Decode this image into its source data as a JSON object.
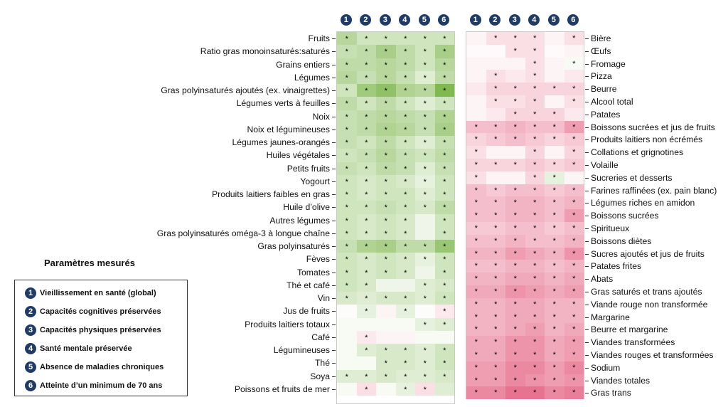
{
  "chart_data": [
    {
      "type": "heatmap",
      "columns": [
        "1",
        "2",
        "3",
        "4",
        "5",
        "6"
      ],
      "rows": [
        {
          "label": "Fruits",
          "values": [
            0.45,
            0.3,
            0.3,
            0.3,
            0.3,
            0.3
          ],
          "stars": [
            1,
            1,
            1,
            1,
            1,
            1
          ]
        },
        {
          "label": "Ratio gras monoinsaturés:saturés",
          "values": [
            0.35,
            0.4,
            0.55,
            0.4,
            0.3,
            0.55
          ],
          "stars": [
            1,
            1,
            1,
            1,
            1,
            1
          ]
        },
        {
          "label": "Grains entiers",
          "values": [
            0.4,
            0.4,
            0.45,
            0.4,
            0.3,
            0.45
          ],
          "stars": [
            1,
            1,
            1,
            1,
            1,
            1
          ]
        },
        {
          "label": "Légumes",
          "values": [
            0.45,
            0.35,
            0.45,
            0.35,
            0.2,
            0.4
          ],
          "stars": [
            1,
            1,
            1,
            1,
            1,
            1
          ]
        },
        {
          "label": "Gras polyinsaturés ajoutés (ex. vinaigrettes)",
          "values": [
            0.3,
            0.6,
            0.7,
            0.5,
            0.45,
            0.8
          ],
          "stars": [
            1,
            1,
            1,
            1,
            1,
            1
          ]
        },
        {
          "label": "Légumes verts à feuilles",
          "values": [
            0.4,
            0.3,
            0.4,
            0.3,
            0.2,
            0.3
          ],
          "stars": [
            1,
            1,
            1,
            1,
            1,
            1
          ]
        },
        {
          "label": "Noix",
          "values": [
            0.35,
            0.4,
            0.45,
            0.4,
            0.35,
            0.5
          ],
          "stars": [
            1,
            1,
            1,
            1,
            1,
            1
          ]
        },
        {
          "label": "Noix et légumineuses",
          "values": [
            0.35,
            0.4,
            0.5,
            0.45,
            0.35,
            0.55
          ],
          "stars": [
            1,
            1,
            1,
            1,
            1,
            1
          ]
        },
        {
          "label": "Légumes jaunes-orangés",
          "values": [
            0.35,
            0.3,
            0.4,
            0.3,
            0.2,
            0.35
          ],
          "stars": [
            1,
            1,
            1,
            1,
            1,
            1
          ]
        },
        {
          "label": "Huiles végétales",
          "values": [
            0.3,
            0.35,
            0.45,
            0.35,
            0.3,
            0.4
          ],
          "stars": [
            1,
            1,
            1,
            1,
            1,
            1
          ]
        },
        {
          "label": "Petits fruits",
          "values": [
            0.35,
            0.3,
            0.4,
            0.35,
            0.2,
            0.35
          ],
          "stars": [
            1,
            1,
            1,
            1,
            1,
            1
          ]
        },
        {
          "label": "Yogourt",
          "values": [
            0.3,
            0.25,
            0.3,
            0.25,
            0.15,
            0.3
          ],
          "stars": [
            1,
            1,
            1,
            1,
            1,
            1
          ]
        },
        {
          "label": "Produits laitiers faibles en gras",
          "values": [
            0.3,
            0.25,
            0.3,
            0.3,
            0.2,
            0.3
          ],
          "stars": [
            1,
            1,
            1,
            1,
            1,
            1
          ]
        },
        {
          "label": "Huile d’olive",
          "values": [
            0.3,
            0.3,
            0.35,
            0.3,
            0.25,
            0.4
          ],
          "stars": [
            1,
            1,
            1,
            1,
            1,
            1
          ]
        },
        {
          "label": "Autres légumes",
          "values": [
            0.3,
            0.25,
            0.3,
            0.25,
            0.1,
            0.3
          ],
          "stars": [
            1,
            1,
            1,
            1,
            0,
            1
          ]
        },
        {
          "label": "Gras polyinsaturés oméga-3 à longue chaîne",
          "values": [
            0.3,
            0.25,
            0.3,
            0.25,
            0.1,
            0.3
          ],
          "stars": [
            1,
            1,
            1,
            1,
            0,
            1
          ]
        },
        {
          "label": "Gras polyinsaturés",
          "values": [
            0.35,
            0.5,
            0.55,
            0.4,
            0.4,
            0.65
          ],
          "stars": [
            1,
            1,
            1,
            1,
            1,
            1
          ]
        },
        {
          "label": "Fèves",
          "values": [
            0.3,
            0.25,
            0.3,
            0.25,
            0.15,
            0.3
          ],
          "stars": [
            1,
            1,
            1,
            1,
            1,
            1
          ]
        },
        {
          "label": "Tomates",
          "values": [
            0.3,
            0.25,
            0.3,
            0.25,
            0.1,
            0.3
          ],
          "stars": [
            1,
            1,
            1,
            1,
            0,
            1
          ]
        },
        {
          "label": "Thé et café",
          "values": [
            0.3,
            0.25,
            0.1,
            0.1,
            0.2,
            0.25
          ],
          "stars": [
            1,
            1,
            0,
            0,
            1,
            1
          ]
        },
        {
          "label": "Vin",
          "values": [
            0.25,
            0.2,
            0.25,
            0.25,
            0.2,
            0.3
          ],
          "stars": [
            1,
            1,
            1,
            1,
            1,
            1
          ]
        },
        {
          "label": "Jus de fruits",
          "values": [
            0.02,
            0.15,
            -0.05,
            0.15,
            0.02,
            -0.1
          ],
          "stars": [
            0,
            1,
            0,
            1,
            0,
            1
          ]
        },
        {
          "label": "Produits laitiers totaux",
          "values": [
            0.05,
            0.05,
            0.05,
            0.05,
            0.15,
            0.2
          ],
          "stars": [
            0,
            0,
            0,
            0,
            1,
            1
          ]
        },
        {
          "label": "Café",
          "values": [
            0.05,
            -0.1,
            -0.05,
            -0.05,
            0.05,
            0.05
          ],
          "stars": [
            0,
            1,
            0,
            0,
            0,
            0
          ]
        },
        {
          "label": "Légumineuses",
          "values": [
            0.05,
            0.2,
            0.25,
            0.25,
            0.2,
            0.3
          ],
          "stars": [
            0,
            1,
            1,
            1,
            1,
            1
          ]
        },
        {
          "label": "Thé",
          "values": [
            0.05,
            0.05,
            0.25,
            0.25,
            0.2,
            0.3
          ],
          "stars": [
            0,
            0,
            1,
            1,
            1,
            1
          ]
        },
        {
          "label": "Soya",
          "values": [
            0.2,
            0.2,
            0.25,
            0.2,
            0.2,
            0.25
          ],
          "stars": [
            1,
            1,
            1,
            1,
            1,
            1
          ]
        },
        {
          "label": "Poissons et fruits de mer",
          "values": [
            0.05,
            -0.15,
            0.05,
            0.15,
            -0.15,
            0.2
          ],
          "stars": [
            0,
            1,
            0,
            1,
            1,
            0
          ]
        }
      ]
    },
    {
      "type": "heatmap",
      "columns": [
        "1",
        "2",
        "3",
        "4",
        "5",
        "6"
      ],
      "rows": [
        {
          "label": "Bière",
          "values": [
            -0.05,
            -0.15,
            -0.15,
            -0.15,
            -0.05,
            -0.15
          ],
          "stars": [
            0,
            1,
            1,
            1,
            0,
            1
          ]
        },
        {
          "label": "Œufs",
          "values": [
            -0.03,
            -0.03,
            -0.15,
            -0.15,
            -0.03,
            -0.05
          ],
          "stars": [
            0,
            0,
            1,
            1,
            0,
            0
          ]
        },
        {
          "label": "Fromage",
          "values": [
            -0.05,
            -0.05,
            -0.05,
            -0.15,
            -0.05,
            0.05
          ],
          "stars": [
            0,
            0,
            0,
            1,
            0,
            1
          ]
        },
        {
          "label": "Pizza",
          "values": [
            -0.05,
            -0.15,
            -0.1,
            -0.15,
            -0.05,
            -0.1
          ],
          "stars": [
            0,
            1,
            0,
            1,
            0,
            0
          ]
        },
        {
          "label": "Beurre",
          "values": [
            -0.1,
            -0.2,
            -0.2,
            -0.2,
            -0.2,
            -0.2
          ],
          "stars": [
            0,
            1,
            1,
            1,
            1,
            1
          ]
        },
        {
          "label": "Alcool total",
          "values": [
            -0.05,
            -0.15,
            -0.15,
            -0.2,
            -0.05,
            -0.15
          ],
          "stars": [
            0,
            1,
            1,
            1,
            0,
            1
          ]
        },
        {
          "label": "Patates",
          "values": [
            -0.05,
            -0.1,
            -0.2,
            -0.2,
            -0.2,
            -0.1
          ],
          "stars": [
            0,
            0,
            1,
            1,
            1,
            0
          ]
        },
        {
          "label": "Boissons sucrées et jus de fruits",
          "values": [
            -0.3,
            -0.3,
            -0.35,
            -0.3,
            -0.3,
            -0.45
          ],
          "stars": [
            1,
            1,
            1,
            1,
            1,
            1
          ]
        },
        {
          "label": "Produits laitiers non écrémés",
          "values": [
            -0.2,
            -0.25,
            -0.3,
            -0.25,
            -0.2,
            -0.25
          ],
          "stars": [
            1,
            1,
            1,
            1,
            1,
            1
          ]
        },
        {
          "label": "Collations et grignotines",
          "values": [
            -0.15,
            -0.05,
            -0.05,
            -0.2,
            -0.05,
            -0.2
          ],
          "stars": [
            1,
            0,
            0,
            1,
            0,
            1
          ]
        },
        {
          "label": "Volaille",
          "values": [
            -0.2,
            -0.2,
            -0.2,
            -0.25,
            -0.2,
            -0.25
          ],
          "stars": [
            1,
            1,
            1,
            1,
            1,
            1
          ]
        },
        {
          "label": "Sucreries et desserts",
          "values": [
            -0.15,
            -0.05,
            -0.05,
            -0.2,
            0.15,
            -0.05
          ],
          "stars": [
            1,
            0,
            0,
            1,
            1,
            0
          ]
        },
        {
          "label": "Farines raffinées (ex. pain blanc)",
          "values": [
            -0.3,
            -0.25,
            -0.3,
            -0.3,
            -0.25,
            -0.3
          ],
          "stars": [
            1,
            1,
            1,
            1,
            1,
            1
          ]
        },
        {
          "label": "Légumes riches en amidon",
          "values": [
            -0.3,
            -0.3,
            -0.35,
            -0.35,
            -0.3,
            -0.35
          ],
          "stars": [
            1,
            1,
            1,
            1,
            1,
            1
          ]
        },
        {
          "label": "Boissons sucrées",
          "values": [
            -0.3,
            -0.3,
            -0.35,
            -0.35,
            -0.3,
            -0.45
          ],
          "stars": [
            1,
            1,
            1,
            1,
            1,
            1
          ]
        },
        {
          "label": "Spiritueux",
          "values": [
            -0.25,
            -0.25,
            -0.3,
            -0.3,
            -0.25,
            -0.3
          ],
          "stars": [
            1,
            1,
            1,
            1,
            1,
            1
          ]
        },
        {
          "label": "Boissons diètes",
          "values": [
            -0.3,
            -0.3,
            -0.35,
            -0.3,
            -0.3,
            -0.35
          ],
          "stars": [
            1,
            1,
            1,
            1,
            1,
            1
          ]
        },
        {
          "label": "Sucres ajoutés et jus de fruits",
          "values": [
            -0.35,
            -0.35,
            -0.45,
            -0.4,
            -0.35,
            -0.5
          ],
          "stars": [
            1,
            1,
            1,
            1,
            1,
            1
          ]
        },
        {
          "label": "Patates frites",
          "values": [
            -0.3,
            -0.3,
            -0.35,
            -0.35,
            -0.3,
            -0.35
          ],
          "stars": [
            1,
            1,
            1,
            1,
            1,
            1
          ]
        },
        {
          "label": "Abats",
          "values": [
            -0.35,
            -0.35,
            -0.4,
            -0.4,
            -0.35,
            -0.4
          ],
          "stars": [
            1,
            1,
            1,
            1,
            1,
            1
          ]
        },
        {
          "label": "Gras saturés et trans ajoutés",
          "values": [
            -0.4,
            -0.4,
            -0.5,
            -0.45,
            -0.4,
            -0.45
          ],
          "stars": [
            1,
            1,
            1,
            1,
            1,
            1
          ]
        },
        {
          "label": "Viande rouge non transformée",
          "values": [
            -0.35,
            -0.35,
            -0.4,
            -0.4,
            -0.35,
            -0.35
          ],
          "stars": [
            1,
            1,
            1,
            1,
            1,
            1
          ]
        },
        {
          "label": "Margarine",
          "values": [
            -0.35,
            -0.35,
            -0.4,
            -0.4,
            -0.35,
            -0.35
          ],
          "stars": [
            1,
            1,
            1,
            1,
            1,
            1
          ]
        },
        {
          "label": "Beurre et margarine",
          "values": [
            -0.35,
            -0.35,
            -0.4,
            -0.45,
            -0.35,
            -0.4
          ],
          "stars": [
            1,
            1,
            1,
            1,
            1,
            1
          ]
        },
        {
          "label": "Viandes transformées",
          "values": [
            -0.4,
            -0.4,
            -0.5,
            -0.5,
            -0.4,
            -0.45
          ],
          "stars": [
            1,
            1,
            1,
            1,
            1,
            1
          ]
        },
        {
          "label": "Viandes rouges et transformées",
          "values": [
            -0.4,
            -0.4,
            -0.5,
            -0.5,
            -0.4,
            -0.45
          ],
          "stars": [
            1,
            1,
            1,
            1,
            1,
            1
          ]
        },
        {
          "label": "Sodium",
          "values": [
            -0.45,
            -0.45,
            -0.55,
            -0.55,
            -0.45,
            -0.55
          ],
          "stars": [
            1,
            1,
            1,
            1,
            1,
            1
          ]
        },
        {
          "label": "Viandes totales",
          "values": [
            -0.45,
            -0.45,
            -0.55,
            -0.5,
            -0.45,
            -0.5
          ],
          "stars": [
            1,
            1,
            1,
            1,
            1,
            1
          ]
        },
        {
          "label": "Gras trans",
          "values": [
            -0.55,
            -0.55,
            -0.65,
            -0.65,
            -0.55,
            -0.6
          ],
          "stars": [
            1,
            1,
            1,
            1,
            1,
            1
          ]
        }
      ]
    }
  ],
  "star_symbol": "*",
  "colors": {
    "badge": "#1f3b67",
    "positive": "#7ab648",
    "negative": "#e0486e"
  },
  "legend": {
    "title": "Paramètres mesurés",
    "items": [
      {
        "num": "1",
        "label": "Vieillissement en santé (global)"
      },
      {
        "num": "2",
        "label": "Capacités cognitives préservées"
      },
      {
        "num": "3",
        "label": "Capacités physiques préservées"
      },
      {
        "num": "4",
        "label": "Santé mentale préservée"
      },
      {
        "num": "5",
        "label": "Absence de maladies chroniques"
      },
      {
        "num": "6",
        "label": "Atteinte d’un minimum de 70 ans"
      }
    ]
  }
}
